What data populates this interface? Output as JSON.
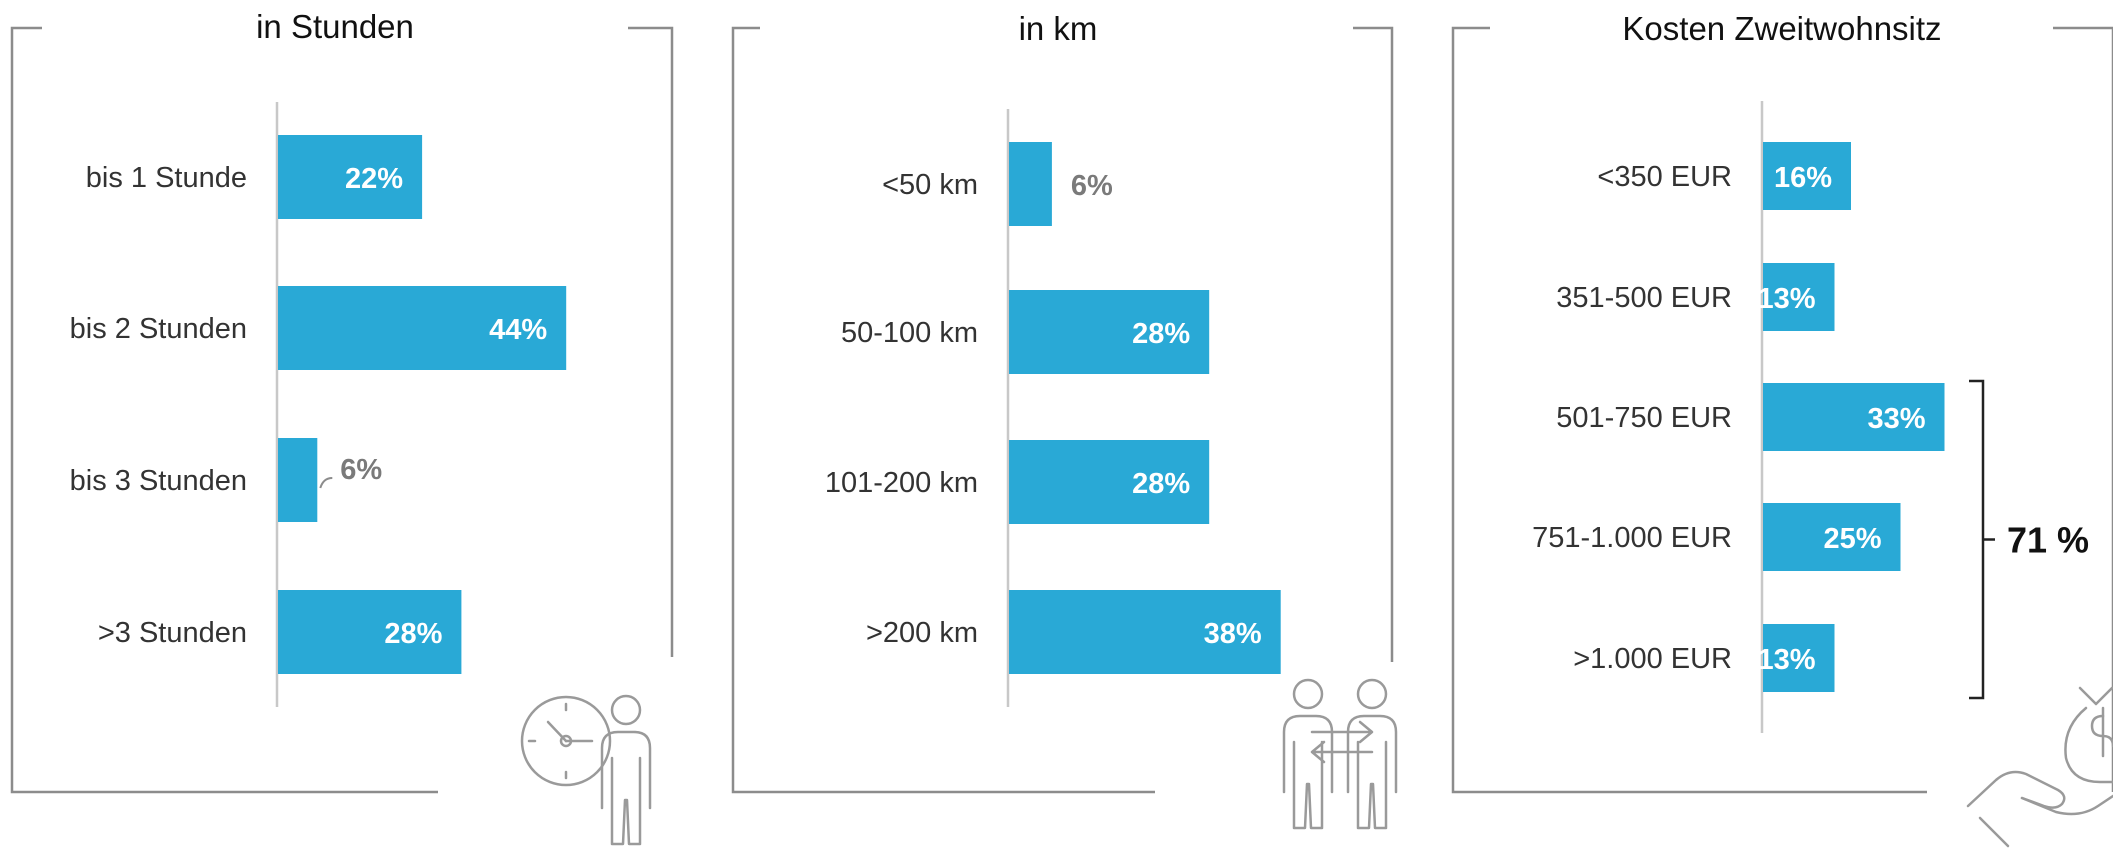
{
  "colors": {
    "bar": "#29a9d6",
    "frame": "#8c8c8c",
    "axis": "#c8c8c8",
    "icon": "#9a9a9a"
  },
  "chart_data": [
    {
      "type": "bar",
      "orientation": "horizontal",
      "title": "in Stunden",
      "categories": [
        "bis 1 Stunde",
        "bis 2 Stunden",
        "bis 3 Stunden",
        ">3 Stunden"
      ],
      "values": [
        22,
        44,
        6,
        28
      ],
      "labels": [
        "22%",
        "44%",
        "6%",
        "28%"
      ],
      "unit": "%",
      "icon": "person-clock-icon"
    },
    {
      "type": "bar",
      "orientation": "horizontal",
      "title": "in km",
      "categories": [
        "<50 km",
        "50-100 km",
        "101-200 km",
        ">200 km"
      ],
      "values": [
        6,
        28,
        28,
        38
      ],
      "labels": [
        "6%",
        "28%",
        "28%",
        "38%"
      ],
      "unit": "%",
      "icon": "two-people-exchange-icon"
    },
    {
      "type": "bar",
      "orientation": "horizontal",
      "title": "Kosten Zweitwohnsitz",
      "categories": [
        "<350 EUR",
        "351-500 EUR",
        "501-750 EUR",
        "751-1.000 EUR",
        ">1.000 EUR"
      ],
      "values": [
        16,
        13,
        33,
        25,
        13
      ],
      "labels": [
        "16%",
        "13%",
        "33%",
        "25%",
        "13%"
      ],
      "unit": "%",
      "icon": "hand-money-bag-icon",
      "annotation": {
        "label": "71 %",
        "from_category": "501-750 EUR",
        "to_category": ">1.000 EUR"
      }
    }
  ]
}
